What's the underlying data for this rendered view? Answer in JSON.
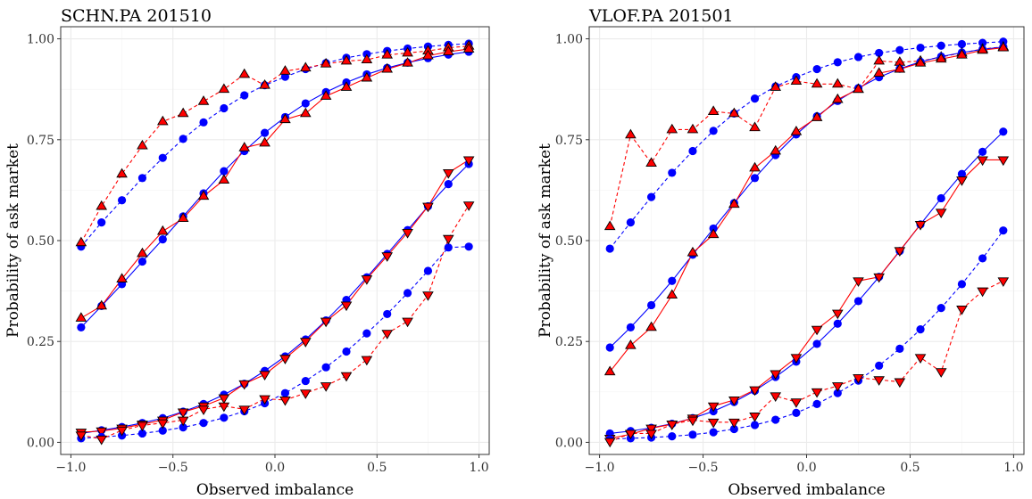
{
  "colors": {
    "model": "#0000ff",
    "empirical": "#ff0000",
    "marker_edge": "#000000"
  },
  "chart_data": [
    {
      "type": "line",
      "title": "SCHN.PA 201510",
      "xlabel": "Observed imbalance",
      "ylabel": "Probability of ask market",
      "xlim": [
        -1.05,
        1.05
      ],
      "ylim": [
        -0.03,
        1.03
      ],
      "xticks": [
        -1.0,
        -0.5,
        0.0,
        0.5,
        1.0
      ],
      "xtick_labels": [
        "−1.0",
        "−0.5",
        "0.0",
        "0.5",
        "1.0"
      ],
      "yticks": [
        0.0,
        0.25,
        0.5,
        0.75,
        1.0
      ],
      "ytick_labels": [
        "0.00",
        "0.25",
        "0.50",
        "0.75",
        "1.00"
      ],
      "grid": true,
      "x": [
        -0.95,
        -0.85,
        -0.75,
        -0.65,
        -0.55,
        -0.45,
        -0.35,
        -0.25,
        -0.15,
        -0.05,
        0.05,
        0.15,
        0.25,
        0.35,
        0.45,
        0.55,
        0.65,
        0.75,
        0.85,
        0.95
      ],
      "series": [
        {
          "group": "model",
          "line": "dashed",
          "marker": "circle",
          "values": [
            0.485,
            0.545,
            0.6,
            0.655,
            0.705,
            0.752,
            0.793,
            0.828,
            0.86,
            0.885,
            0.906,
            0.925,
            0.94,
            0.953,
            0.962,
            0.97,
            0.976,
            0.981,
            0.985,
            0.988
          ]
        },
        {
          "group": "empirical",
          "line": "dashed",
          "marker": "triangle-up",
          "values": [
            0.495,
            0.585,
            0.665,
            0.735,
            0.795,
            0.815,
            0.845,
            0.875,
            0.912,
            0.885,
            0.92,
            0.928,
            0.938,
            0.945,
            0.948,
            0.96,
            0.965,
            0.97,
            0.978,
            0.982
          ]
        },
        {
          "group": "model",
          "line": "solid",
          "marker": "circle",
          "values": [
            0.285,
            0.338,
            0.392,
            0.448,
            0.503,
            0.56,
            0.617,
            0.672,
            0.722,
            0.767,
            0.806,
            0.84,
            0.868,
            0.892,
            0.912,
            0.928,
            0.941,
            0.952,
            0.961,
            0.968
          ]
        },
        {
          "group": "empirical",
          "line": "solid",
          "marker": "triangle-up",
          "values": [
            0.308,
            0.338,
            0.405,
            0.468,
            0.523,
            0.555,
            0.61,
            0.65,
            0.73,
            0.742,
            0.8,
            0.815,
            0.858,
            0.88,
            0.903,
            0.925,
            0.94,
            0.958,
            0.968,
            0.975
          ]
        },
        {
          "group": "model",
          "line": "solid",
          "marker": "circle",
          "values": [
            0.022,
            0.03,
            0.038,
            0.048,
            0.06,
            0.076,
            0.095,
            0.118,
            0.145,
            0.177,
            0.213,
            0.255,
            0.302,
            0.353,
            0.409,
            0.467,
            0.526,
            0.585,
            0.64,
            0.69
          ]
        },
        {
          "group": "empirical",
          "line": "solid",
          "marker": "triangle-down",
          "values": [
            0.025,
            0.028,
            0.035,
            0.045,
            0.055,
            0.075,
            0.09,
            0.11,
            0.145,
            0.168,
            0.208,
            0.25,
            0.3,
            0.34,
            0.405,
            0.462,
            0.52,
            0.585,
            0.668,
            0.7
          ]
        },
        {
          "group": "model",
          "line": "dashed",
          "marker": "circle",
          "values": [
            0.01,
            0.013,
            0.017,
            0.022,
            0.029,
            0.037,
            0.048,
            0.061,
            0.077,
            0.097,
            0.122,
            0.152,
            0.186,
            0.225,
            0.27,
            0.318,
            0.37,
            0.425,
            0.483,
            0.485
          ]
        },
        {
          "group": "empirical",
          "line": "dashed",
          "marker": "triangle-down",
          "values": [
            0.018,
            0.008,
            0.03,
            0.042,
            0.048,
            0.055,
            0.082,
            0.09,
            0.082,
            0.108,
            0.105,
            0.122,
            0.14,
            0.165,
            0.205,
            0.27,
            0.3,
            0.365,
            0.505,
            0.588
          ]
        }
      ]
    },
    {
      "type": "line",
      "title": "VLOF.PA 201501",
      "xlabel": "Observed imbalance",
      "ylabel": "Probability of ask market",
      "xlim": [
        -1.05,
        1.05
      ],
      "ylim": [
        -0.03,
        1.03
      ],
      "xticks": [
        -1.0,
        -0.5,
        0.0,
        0.5,
        1.0
      ],
      "xtick_labels": [
        "−1.0",
        "−0.5",
        "0.0",
        "0.5",
        "1.0"
      ],
      "yticks": [
        0.0,
        0.25,
        0.5,
        0.75,
        1.0
      ],
      "ytick_labels": [
        "0.00",
        "0.25",
        "0.50",
        "0.75",
        "1.00"
      ],
      "grid": true,
      "x": [
        -0.95,
        -0.85,
        -0.75,
        -0.65,
        -0.55,
        -0.45,
        -0.35,
        -0.25,
        -0.15,
        -0.05,
        0.05,
        0.15,
        0.25,
        0.35,
        0.45,
        0.55,
        0.65,
        0.75,
        0.85,
        0.95
      ],
      "series": [
        {
          "group": "model",
          "line": "dashed",
          "marker": "circle",
          "values": [
            0.48,
            0.545,
            0.608,
            0.668,
            0.722,
            0.772,
            0.815,
            0.852,
            0.882,
            0.905,
            0.925,
            0.942,
            0.955,
            0.965,
            0.972,
            0.978,
            0.983,
            0.987,
            0.99,
            0.993
          ]
        },
        {
          "group": "empirical",
          "line": "dashed",
          "marker": "triangle-up",
          "values": [
            0.535,
            0.762,
            0.692,
            0.775,
            0.775,
            0.82,
            0.815,
            0.78,
            0.88,
            0.895,
            0.888,
            0.888,
            0.875,
            0.945,
            0.942,
            0.945,
            0.955,
            0.965,
            0.975,
            0.98
          ]
        },
        {
          "group": "model",
          "line": "solid",
          "marker": "circle",
          "values": [
            0.235,
            0.285,
            0.34,
            0.4,
            0.465,
            0.53,
            0.593,
            0.655,
            0.712,
            0.763,
            0.808,
            0.846,
            0.878,
            0.905,
            0.926,
            0.943,
            0.956,
            0.966,
            0.974,
            0.98
          ]
        },
        {
          "group": "empirical",
          "line": "solid",
          "marker": "triangle-up",
          "values": [
            0.175,
            0.24,
            0.285,
            0.365,
            0.47,
            0.515,
            0.59,
            0.68,
            0.722,
            0.77,
            0.805,
            0.85,
            0.875,
            0.915,
            0.925,
            0.94,
            0.95,
            0.96,
            0.972,
            0.978
          ]
        },
        {
          "group": "model",
          "line": "solid",
          "marker": "circle",
          "values": [
            0.022,
            0.028,
            0.036,
            0.046,
            0.06,
            0.077,
            0.1,
            0.128,
            0.162,
            0.2,
            0.244,
            0.294,
            0.35,
            0.41,
            0.474,
            0.54,
            0.605,
            0.665,
            0.72,
            0.77
          ]
        },
        {
          "group": "empirical",
          "line": "solid",
          "marker": "triangle-down",
          "values": [
            0.01,
            0.02,
            0.035,
            0.045,
            0.06,
            0.09,
            0.105,
            0.13,
            0.17,
            0.21,
            0.28,
            0.32,
            0.4,
            0.41,
            0.475,
            0.54,
            0.57,
            0.65,
            0.7,
            0.7
          ]
        },
        {
          "group": "model",
          "line": "dashed",
          "marker": "circle",
          "values": [
            0.008,
            0.01,
            0.012,
            0.015,
            0.019,
            0.025,
            0.033,
            0.043,
            0.056,
            0.073,
            0.095,
            0.122,
            0.153,
            0.19,
            0.232,
            0.28,
            0.333,
            0.392,
            0.456,
            0.525
          ]
        },
        {
          "group": "empirical",
          "line": "dashed",
          "marker": "triangle-down",
          "values": [
            0.002,
            0.022,
            0.022,
            0.045,
            0.055,
            0.05,
            0.05,
            0.065,
            0.115,
            0.1,
            0.125,
            0.14,
            0.16,
            0.155,
            0.15,
            0.21,
            0.175,
            0.33,
            0.375,
            0.4
          ]
        }
      ]
    }
  ]
}
